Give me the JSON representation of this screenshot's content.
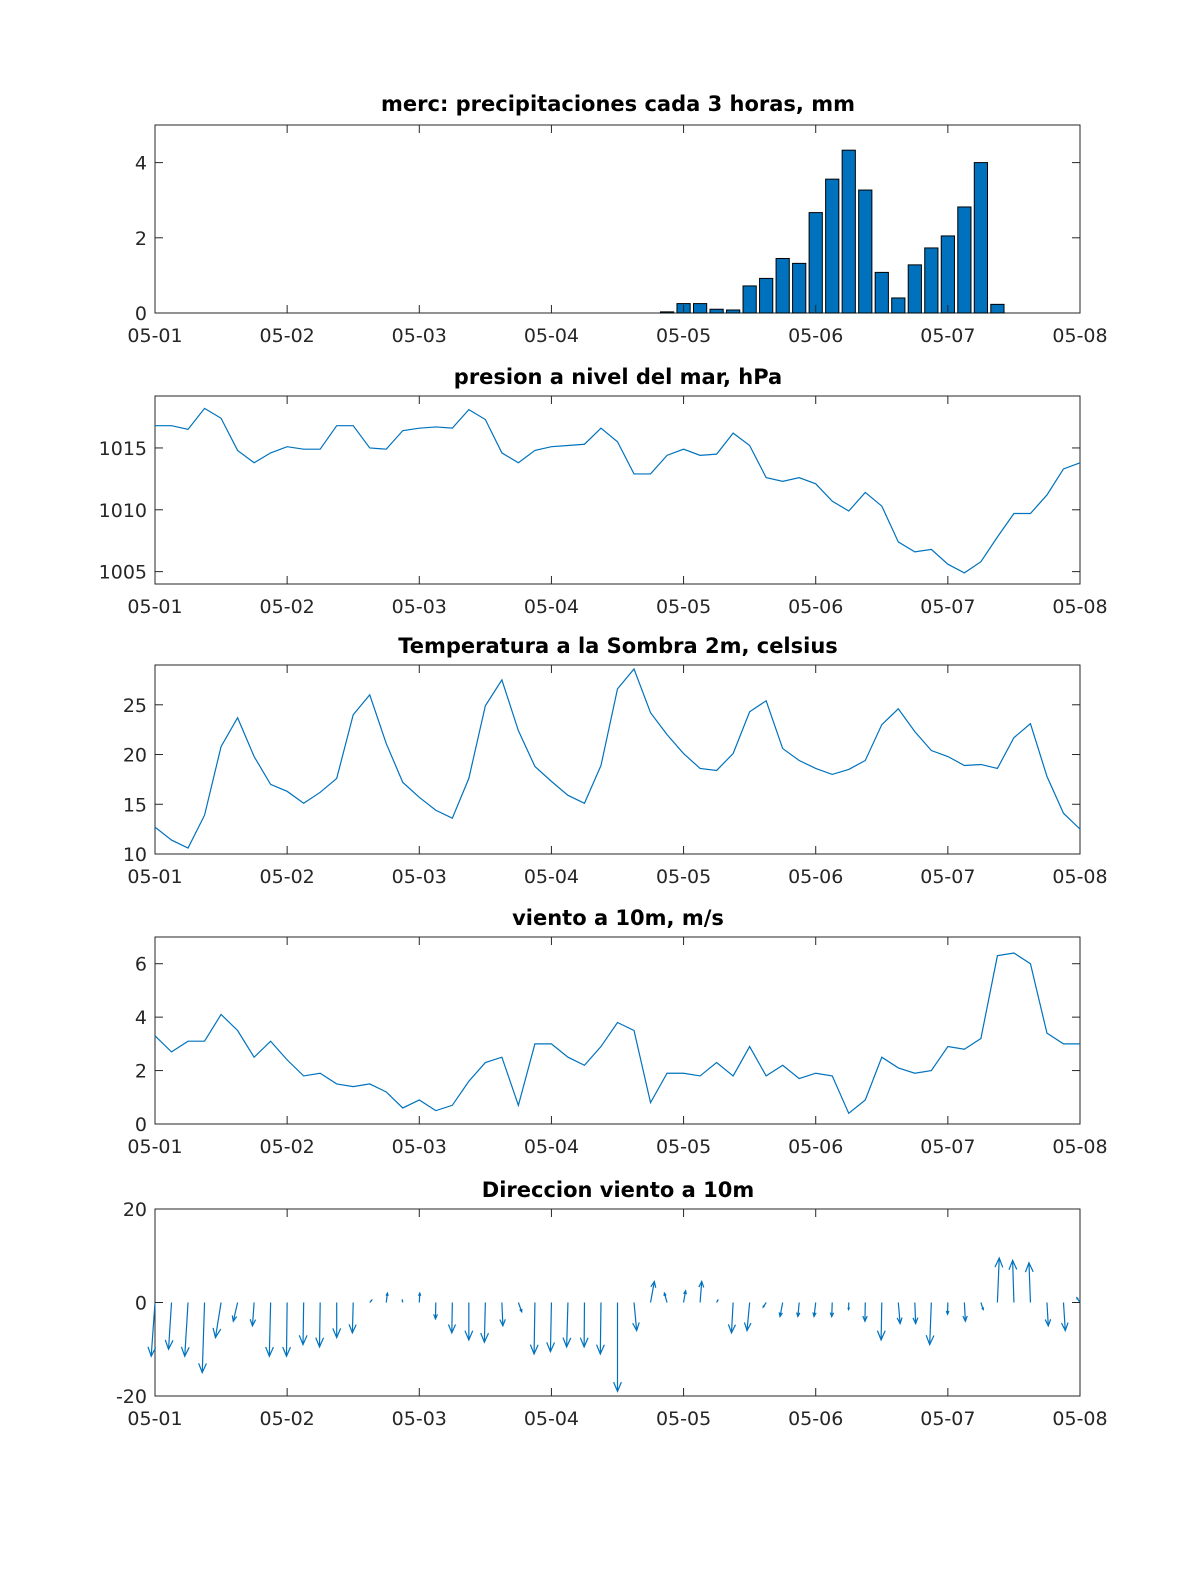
{
  "colors": {
    "series": "#0072BD",
    "axes": "#262626",
    "background": "#ffffff"
  },
  "chart_data": [
    {
      "type": "bar",
      "title": "merc: precipitaciones cada 3 horas, mm",
      "xlabel": "",
      "ylabel": "",
      "xticklabels": [
        "05-01",
        "05-02",
        "05-03",
        "05-04",
        "05-05",
        "05-06",
        "05-07",
        "05-08"
      ],
      "xlim": [
        0,
        7
      ],
      "ylim": [
        0,
        5
      ],
      "yticks": [
        0,
        2,
        4
      ],
      "ytick_labels": [
        "0",
        "2",
        "4"
      ],
      "x": [
        3.875,
        4.0,
        4.125,
        4.25,
        4.375,
        4.5,
        4.625,
        4.75,
        4.875,
        5.0,
        5.125,
        5.25,
        5.375,
        5.5,
        5.625,
        5.75,
        5.875,
        6.0,
        6.125,
        6.25,
        6.375
      ],
      "values": [
        0.03,
        0.25,
        0.25,
        0.1,
        0.08,
        0.72,
        0.92,
        1.45,
        1.32,
        2.67,
        3.56,
        4.33,
        3.27,
        1.08,
        0.4,
        1.28,
        1.73,
        2.05,
        2.82,
        4.0,
        0.23
      ]
    },
    {
      "type": "line",
      "title": "presion a nivel del mar, hPa",
      "xlabel": "",
      "ylabel": "",
      "xticklabels": [
        "05-01",
        "05-02",
        "05-03",
        "05-04",
        "05-05",
        "05-06",
        "05-07",
        "05-08"
      ],
      "xlim": [
        0,
        7
      ],
      "ylim": [
        1004,
        1019.2
      ],
      "yticks": [
        1005,
        1010,
        1015
      ],
      "ytick_labels": [
        "1005",
        "1010",
        "1015"
      ],
      "x_step": 0.125,
      "values": [
        1016.8,
        1016.8,
        1016.5,
        1018.2,
        1017.4,
        1014.8,
        1013.8,
        1014.6,
        1015.1,
        1014.9,
        1014.9,
        1016.8,
        1016.8,
        1015.0,
        1014.9,
        1016.4,
        1016.6,
        1016.7,
        1016.6,
        1018.1,
        1017.3,
        1014.6,
        1013.8,
        1014.8,
        1015.1,
        1015.2,
        1015.3,
        1016.6,
        1015.5,
        1012.9,
        1012.9,
        1014.4,
        1014.9,
        1014.4,
        1014.5,
        1016.2,
        1015.2,
        1012.6,
        1012.3,
        1012.6,
        1012.1,
        1010.7,
        1009.9,
        1011.4,
        1010.3,
        1007.4,
        1006.6,
        1006.8,
        1005.6,
        1004.9,
        1005.8,
        1007.8,
        1009.7,
        1009.7,
        1011.2,
        1013.3,
        1013.8
      ]
    },
    {
      "type": "line",
      "title": "Temperatura a la Sombra 2m, celsius",
      "xlabel": "",
      "ylabel": "",
      "xticklabels": [
        "05-01",
        "05-02",
        "05-03",
        "05-04",
        "05-05",
        "05-06",
        "05-07",
        "05-08"
      ],
      "xlim": [
        0,
        7
      ],
      "ylim": [
        10,
        29
      ],
      "yticks": [
        10,
        15,
        20,
        25
      ],
      "ytick_labels": [
        "10",
        "15",
        "20",
        "25"
      ],
      "x_step": 0.125,
      "values": [
        12.7,
        11.4,
        10.6,
        13.9,
        20.8,
        23.7,
        19.8,
        17.0,
        16.3,
        15.1,
        16.2,
        17.6,
        24.0,
        26.0,
        21.1,
        17.2,
        15.7,
        14.4,
        13.6,
        17.6,
        24.9,
        27.5,
        22.4,
        18.8,
        17.3,
        15.9,
        15.1,
        18.9,
        26.6,
        28.6,
        24.2,
        22.0,
        20.1,
        18.6,
        18.4,
        20.1,
        24.3,
        25.4,
        20.6,
        19.4,
        18.6,
        18.0,
        18.5,
        19.4,
        23.0,
        24.6,
        22.3,
        20.4,
        19.8,
        18.9,
        19.0,
        18.6,
        21.7,
        23.1,
        17.8,
        14.1,
        12.5
      ]
    },
    {
      "type": "line",
      "title": "viento a 10m, m/s",
      "xlabel": "",
      "ylabel": "",
      "xticklabels": [
        "05-01",
        "05-02",
        "05-03",
        "05-04",
        "05-05",
        "05-06",
        "05-07",
        "05-08"
      ],
      "xlim": [
        0,
        7
      ],
      "ylim": [
        0,
        7
      ],
      "yticks": [
        0,
        2,
        4,
        6
      ],
      "ytick_labels": [
        "0",
        "2",
        "4",
        "6"
      ],
      "x_step": 0.125,
      "values": [
        3.3,
        2.7,
        3.1,
        3.1,
        4.1,
        3.5,
        2.5,
        3.1,
        2.4,
        1.8,
        1.9,
        1.5,
        1.4,
        1.5,
        1.2,
        0.6,
        0.9,
        0.5,
        0.7,
        1.6,
        2.3,
        2.5,
        0.7,
        3.0,
        3.0,
        2.5,
        2.2,
        2.9,
        3.8,
        3.5,
        0.8,
        1.9,
        1.9,
        1.8,
        2.3,
        1.8,
        2.9,
        1.8,
        2.2,
        1.7,
        1.9,
        1.8,
        0.4,
        0.9,
        2.5,
        2.1,
        1.9,
        2.0,
        2.9,
        2.8,
        3.2,
        6.3,
        6.4,
        6.0,
        3.4,
        3.0,
        3.0
      ]
    },
    {
      "type": "quiver",
      "title": "Direccion viento a 10m",
      "xlabel": "",
      "ylabel": "",
      "xticklabels": [
        "05-01",
        "05-02",
        "05-03",
        "05-04",
        "05-05",
        "05-06",
        "05-07",
        "05-08"
      ],
      "xlim": [
        0,
        7
      ],
      "ylim": [
        -20,
        20
      ],
      "yticks": [
        -20,
        0,
        20
      ],
      "ytick_labels": [
        "-20",
        "0",
        "20"
      ],
      "x_step": 0.125,
      "arrow_xscale": 0.0125,
      "u": [
        -2.3,
        -1.8,
        -2.0,
        -1.4,
        -3.4,
        -2.6,
        -1.0,
        -0.8,
        -0.4,
        -0.4,
        -0.4,
        0.0,
        -0.5,
        1.2,
        0.7,
        -0.3,
        0.3,
        -0.2,
        -0.3,
        0.0,
        -0.6,
        0.6,
        2.0,
        -0.5,
        -0.6,
        -0.8,
        -0.2,
        -0.4,
        0.0,
        1.6,
        2.3,
        -1.6,
        1.2,
        1.0,
        0.7,
        -1.0,
        -1.6,
        -1.8,
        -1.6,
        -0.8,
        -1.0,
        -0.3,
        -0.1,
        -0.2,
        -0.4,
        1.1,
        0.5,
        -1.0,
        -0.2,
        0.6,
        1.4,
        1.1,
        -0.8,
        -0.9,
        0.8,
        1.1,
        -1.9
      ],
      "v": [
        -2.3,
        -2.0,
        -2.3,
        -3.0,
        -1.5,
        -0.8,
        -1.0,
        -2.3,
        -2.3,
        -1.8,
        -1.9,
        -1.5,
        -1.3,
        0.1,
        0.4,
        0.1,
        0.4,
        -0.7,
        -1.3,
        -1.6,
        -1.7,
        -1.0,
        -0.4,
        -2.2,
        -2.1,
        -1.9,
        -1.9,
        -2.2,
        -3.8,
        -1.2,
        0.9,
        0.4,
        0.5,
        0.9,
        0.1,
        -1.3,
        -1.2,
        -0.2,
        -0.6,
        -0.6,
        -0.6,
        -0.6,
        -0.3,
        -0.8,
        -1.6,
        -0.9,
        -0.9,
        -1.8,
        -0.5,
        -0.8,
        -0.3,
        1.9,
        1.8,
        1.7,
        -1.0,
        -1.2,
        0.2
      ]
    }
  ]
}
